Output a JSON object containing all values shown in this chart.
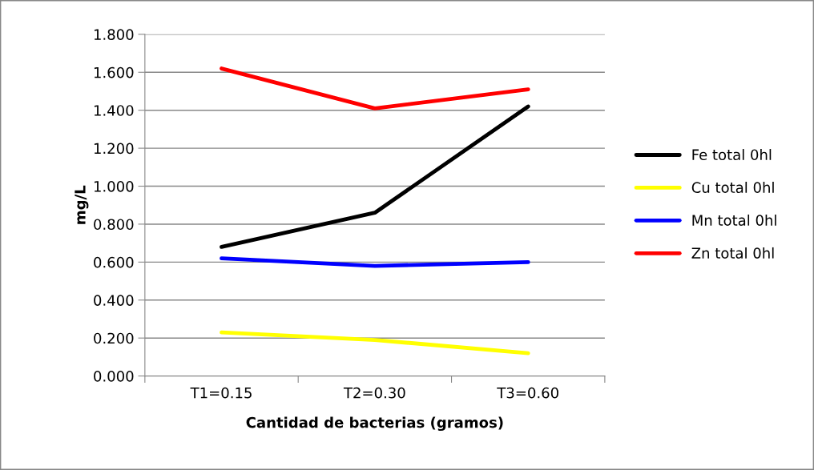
{
  "chart_data": {
    "type": "line",
    "xlabel": "Cantidad de bacterias (gramos)",
    "ylabel": "mg/L",
    "categories": [
      "T1=0.15",
      "T2=0.30",
      "T3=0.60"
    ],
    "series": [
      {
        "name": "Fe total 0hl",
        "color": "#000000",
        "values": [
          0.68,
          0.86,
          1.42
        ]
      },
      {
        "name": "Cu total 0hl",
        "color": "#ffff00",
        "values": [
          0.23,
          0.19,
          0.12
        ]
      },
      {
        "name": "Mn total 0hl",
        "color": "#0000ff",
        "values": [
          0.62,
          0.58,
          0.6
        ]
      },
      {
        "name": "Zn total 0hl",
        "color": "#ff0000",
        "values": [
          1.62,
          1.41,
          1.51
        ]
      }
    ],
    "ylim": [
      0,
      1.8
    ],
    "yticks": [
      {
        "value": 0,
        "label": "0.000"
      },
      {
        "value": 0.2,
        "label": "0.200"
      },
      {
        "value": 0.4,
        "label": "0.400"
      },
      {
        "value": 0.6,
        "label": "0.600"
      },
      {
        "value": 0.8,
        "label": "0.800"
      },
      {
        "value": 1.0,
        "label": "1.000"
      },
      {
        "value": 1.2,
        "label": "1.200"
      },
      {
        "value": 1.4,
        "label": "1.400"
      },
      {
        "value": 1.6,
        "label": "1.600"
      },
      {
        "value": 1.8,
        "label": "1.800"
      }
    ],
    "grid": "y",
    "legend": "right",
    "marker": "none",
    "line_style": "solid"
  }
}
